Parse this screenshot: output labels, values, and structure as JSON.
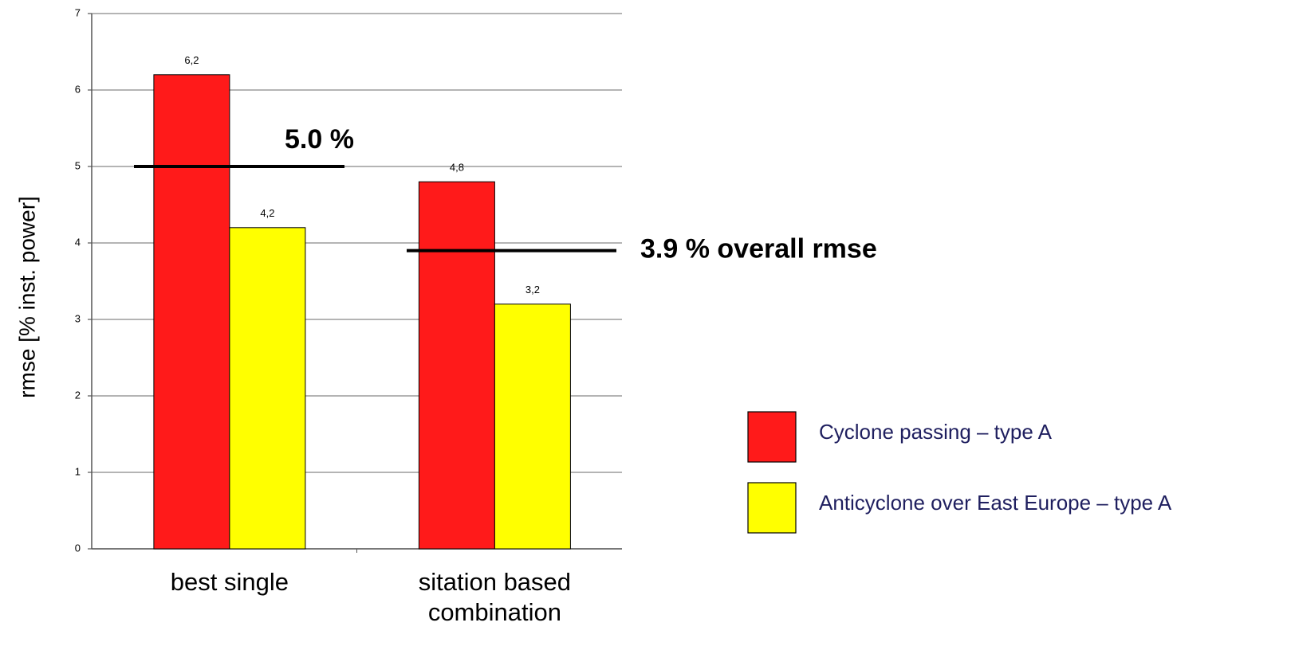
{
  "chart_data": {
    "type": "bar",
    "y_label": "rmse [% inst. power]",
    "categories": [
      "best single",
      "sitation based combination"
    ],
    "series": [
      {
        "name": "Cyclone passing – type A",
        "color": "#ff1a1a",
        "values": [
          6.2,
          4.8
        ],
        "value_labels": [
          "6,2",
          "4,8"
        ]
      },
      {
        "name": "Anticyclone over East Europe – type A",
        "color": "#ffff00",
        "values": [
          4.2,
          3.2
        ],
        "value_labels": [
          "4,2",
          "3,2"
        ]
      }
    ],
    "annotations": [
      {
        "text": "5.0 %",
        "value": 5.0
      },
      {
        "text": "3.9 % overall rmse",
        "value": 3.9
      }
    ],
    "ylim": [
      0,
      7
    ],
    "yticks": [
      0,
      1,
      2,
      3,
      4,
      5,
      6,
      7
    ],
    "grid": true,
    "legend": "right"
  }
}
